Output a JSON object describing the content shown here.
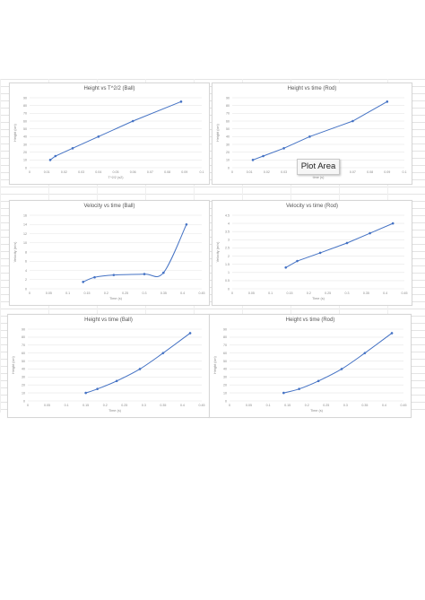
{
  "tooltip": {
    "label": "Plot Area"
  },
  "colors": {
    "series": "#4472c4",
    "grid": "#e6e6e6",
    "axis_text": "#888888"
  },
  "charts": [
    {
      "title": "Height vs T^2/2 (Ball)",
      "ylabel": "Height (cm)",
      "xlabel": "T^2/2 (s2)",
      "chart_data": {
        "type": "scatter",
        "smooth": false,
        "title": "Height vs T^2/2 (Ball)",
        "xlabel": "T^2/2 (s2)",
        "ylabel": "Height (cm)",
        "xlim": [
          0,
          0.1
        ],
        "ylim": [
          0,
          90
        ],
        "xticks": [
          0,
          0.01,
          0.02,
          0.03,
          0.04,
          0.05,
          0.06,
          0.07,
          0.08,
          0.09,
          0.1
        ],
        "xtick_labels": [
          "0",
          "0.01",
          "0.02",
          "0.03",
          "0.04",
          "0.05",
          "0.06",
          "0.07",
          "0.08",
          "0.09",
          "0.1"
        ],
        "yticks": [
          0,
          10,
          20,
          30,
          40,
          50,
          60,
          70,
          80,
          90
        ],
        "x": [
          0.012,
          0.015,
          0.025,
          0.04,
          0.06,
          0.088
        ],
        "y": [
          10,
          15,
          25,
          40,
          60,
          85
        ]
      }
    },
    {
      "title": "Height vs time (Rod)",
      "ylabel": "Height (cm)",
      "xlabel": "time (s)",
      "chart_data": {
        "type": "scatter",
        "smooth": false,
        "title": "Height vs time (Rod)",
        "xlabel": "time (s)",
        "ylabel": "Height (cm)",
        "xlim": [
          0,
          0.1
        ],
        "ylim": [
          0,
          90
        ],
        "xticks": [
          0,
          0.01,
          0.02,
          0.03,
          0.04,
          0.05,
          0.06,
          0.07,
          0.08,
          0.09,
          0.1
        ],
        "xtick_labels": [
          "0",
          "0.01",
          "0.02",
          "0.03",
          "0.04",
          "0.05",
          "0.06",
          "0.07",
          "0.08",
          "0.09",
          "0.1"
        ],
        "yticks": [
          0,
          10,
          20,
          30,
          40,
          50,
          60,
          70,
          80,
          90
        ],
        "x": [
          0.012,
          0.018,
          0.03,
          0.045,
          0.07,
          0.09
        ],
        "y": [
          10,
          15,
          25,
          40,
          60,
          85
        ]
      }
    },
    {
      "title": "Velocity vs time (Ball)",
      "ylabel": "Velocity (m/s)",
      "xlabel": "Time (s)",
      "chart_data": {
        "type": "line",
        "smooth": true,
        "title": "Velocity vs time (Ball)",
        "xlabel": "Time (s)",
        "ylabel": "Velocity (m/s)",
        "xlim": [
          0,
          0.45
        ],
        "ylim": [
          0,
          16
        ],
        "xticks": [
          0,
          0.05,
          0.1,
          0.15,
          0.2,
          0.25,
          0.3,
          0.35,
          0.4,
          0.45
        ],
        "xtick_labels": [
          "0",
          "0.05",
          "0.1",
          "0.15",
          "0.2",
          "0.25",
          "0.3",
          "0.35",
          "0.4",
          "0.45"
        ],
        "yticks": [
          0,
          2,
          4,
          6,
          8,
          10,
          12,
          14,
          16
        ],
        "x": [
          0.14,
          0.17,
          0.22,
          0.3,
          0.35,
          0.41
        ],
        "y": [
          1.5,
          2.5,
          3,
          3.2,
          3.5,
          14
        ]
      }
    },
    {
      "title": "Velocity vs time (Rod)",
      "ylabel": "Velocity (m/s)",
      "xlabel": "Time (s)",
      "chart_data": {
        "type": "scatter",
        "smooth": false,
        "title": "Velocity vs time (Rod)",
        "xlabel": "Time (s)",
        "ylabel": "Velocity (m/s)",
        "xlim": [
          0,
          0.45
        ],
        "ylim": [
          0,
          4.5
        ],
        "xticks": [
          0,
          0.05,
          0.1,
          0.15,
          0.2,
          0.25,
          0.3,
          0.35,
          0.4,
          0.45
        ],
        "xtick_labels": [
          "0",
          "0.05",
          "0.1",
          "0.15",
          "0.2",
          "0.25",
          "0.3",
          "0.35",
          "0.4",
          "0.45"
        ],
        "yticks": [
          0,
          0.5,
          1,
          1.5,
          2,
          2.5,
          3,
          3.5,
          4,
          4.5
        ],
        "x": [
          0.14,
          0.17,
          0.23,
          0.3,
          0.36,
          0.42
        ],
        "y": [
          1.3,
          1.7,
          2.2,
          2.8,
          3.4,
          4
        ]
      }
    },
    {
      "title": "Height vs time (Ball)",
      "ylabel": "Height (cm)",
      "xlabel": "Time (s)",
      "chart_data": {
        "type": "line",
        "smooth": true,
        "title": "Height vs time (Ball)",
        "xlabel": "Time (s)",
        "ylabel": "Height (cm)",
        "xlim": [
          0,
          0.45
        ],
        "ylim": [
          0,
          90
        ],
        "xticks": [
          0,
          0.05,
          0.1,
          0.15,
          0.2,
          0.25,
          0.3,
          0.35,
          0.4,
          0.45
        ],
        "xtick_labels": [
          "0",
          "0.05",
          "0.1",
          "0.15",
          "0.2",
          "0.25",
          "0.3",
          "0.35",
          "0.4",
          "0.45"
        ],
        "yticks": [
          0,
          10,
          20,
          30,
          40,
          50,
          60,
          70,
          80,
          90
        ],
        "x": [
          0.15,
          0.18,
          0.23,
          0.29,
          0.35,
          0.42
        ],
        "y": [
          10,
          15,
          25,
          40,
          60,
          85
        ]
      }
    },
    {
      "title": "Height vs time (Rod)",
      "ylabel": "Height (cm)",
      "xlabel": "Time (s)",
      "chart_data": {
        "type": "line",
        "smooth": true,
        "title": "Height vs time (Rod)",
        "xlabel": "Time (s)",
        "ylabel": "Height (cm)",
        "xlim": [
          0,
          0.45
        ],
        "ylim": [
          0,
          90
        ],
        "xticks": [
          0,
          0.05,
          0.1,
          0.15,
          0.2,
          0.25,
          0.3,
          0.35,
          0.4,
          0.45
        ],
        "xtick_labels": [
          "0",
          "0.05",
          "0.1",
          "0.15",
          "0.2",
          "0.25",
          "0.3",
          "0.35",
          "0.4",
          "0.45"
        ],
        "yticks": [
          0,
          10,
          20,
          30,
          40,
          50,
          60,
          70,
          80,
          90
        ],
        "x": [
          0.14,
          0.18,
          0.23,
          0.29,
          0.35,
          0.42
        ],
        "y": [
          10,
          15,
          25,
          40,
          60,
          85
        ]
      }
    }
  ]
}
